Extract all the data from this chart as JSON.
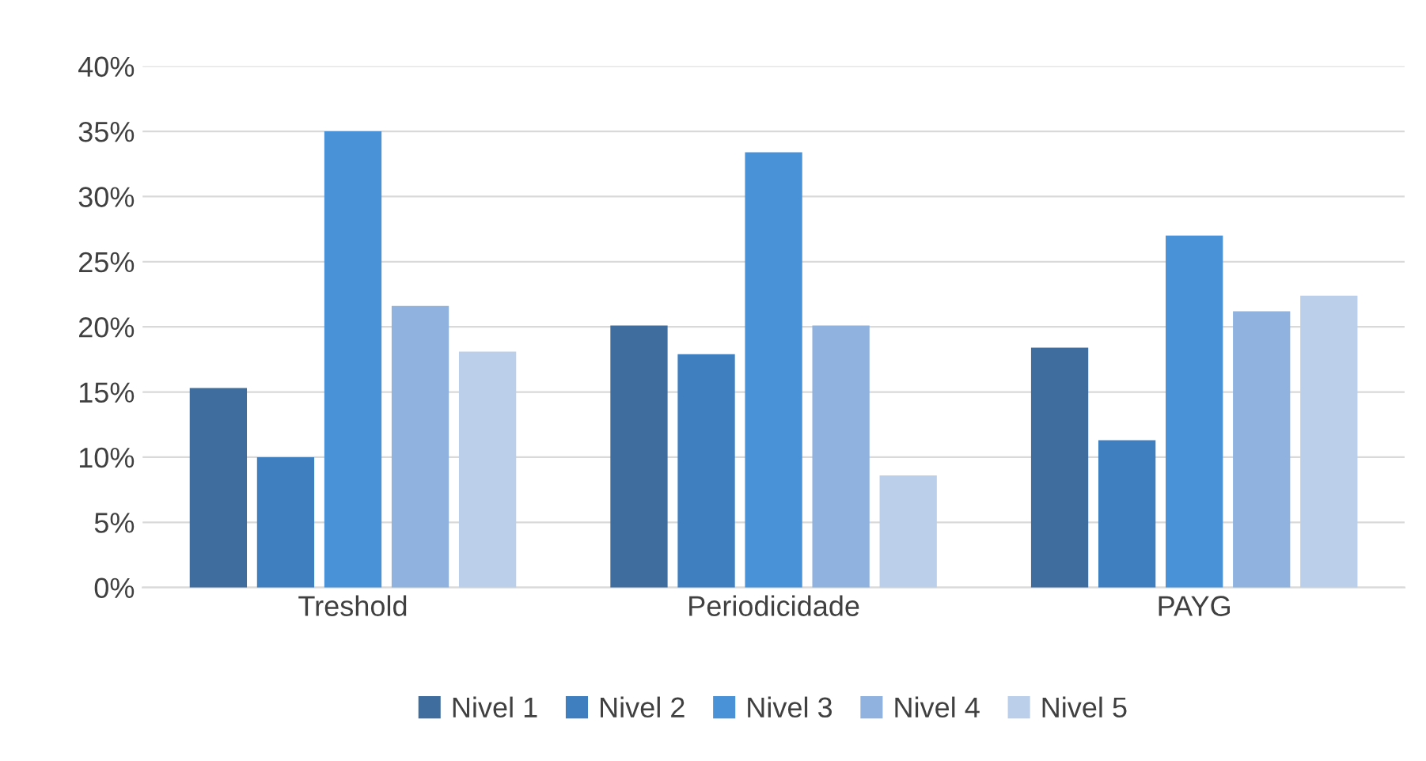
{
  "chart_data": {
    "type": "bar",
    "categories": [
      "Treshold",
      "Periodicidade",
      "PAYG"
    ],
    "series": [
      {
        "name": "Nivel 1",
        "color": "#3f6e9e",
        "values": [
          15.3,
          20.1,
          18.4
        ]
      },
      {
        "name": "Nivel 2",
        "color": "#3f7fc0",
        "values": [
          10.0,
          17.9,
          11.3
        ]
      },
      {
        "name": "Nivel 3",
        "color": "#4a92d8",
        "values": [
          35.0,
          33.4,
          27.0
        ]
      },
      {
        "name": "Nivel 4",
        "color": "#8fb2de",
        "values": [
          21.6,
          20.1,
          21.2
        ]
      },
      {
        "name": "Nivel 5",
        "color": "#bccfea",
        "values": [
          18.1,
          8.6,
          22.4
        ]
      }
    ],
    "ylim": [
      0,
      40
    ],
    "yticks": [
      {
        "value": 0,
        "label": "0%"
      },
      {
        "value": 5,
        "label": "5%"
      },
      {
        "value": 10,
        "label": "10%"
      },
      {
        "value": 15,
        "label": "15%"
      },
      {
        "value": 20,
        "label": "20%"
      },
      {
        "value": 25,
        "label": "25%"
      },
      {
        "value": 30,
        "label": "30%"
      },
      {
        "value": 35,
        "label": "35%"
      },
      {
        "value": 40,
        "label": "40%"
      }
    ],
    "grid": "y",
    "legend": "bottom"
  }
}
